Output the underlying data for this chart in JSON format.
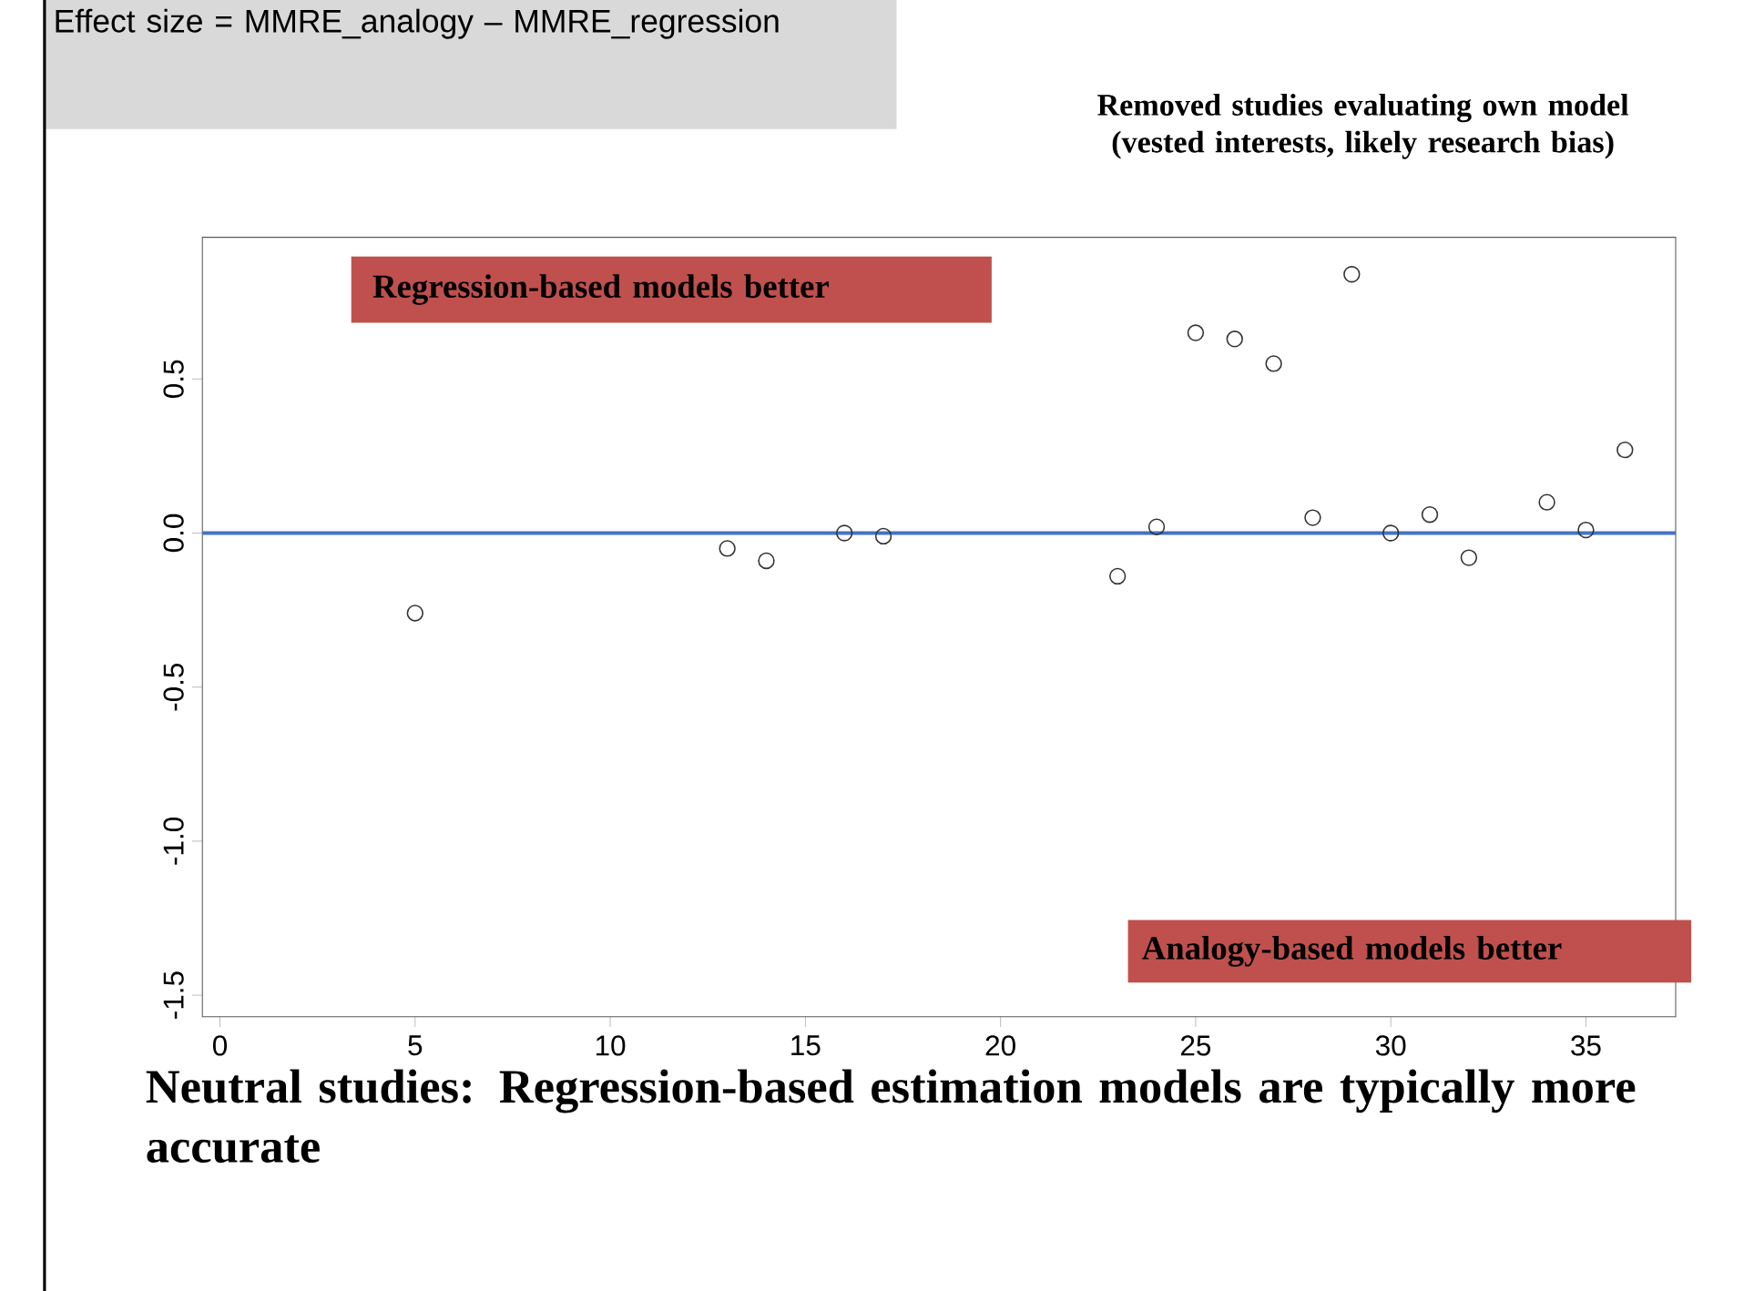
{
  "chart_data": {
    "type": "scatter",
    "x": [
      5,
      13,
      14,
      16,
      17,
      23,
      24,
      25,
      26,
      27,
      28,
      29,
      30,
      31,
      32,
      34,
      35,
      36
    ],
    "values": [
      -0.26,
      -0.05,
      -0.09,
      0.0,
      -0.01,
      -0.14,
      0.02,
      0.65,
      0.63,
      0.55,
      0.05,
      0.84,
      0.0,
      0.06,
      -0.08,
      0.1,
      0.01,
      0.27
    ],
    "color": "#333333",
    "marker": "circle",
    "xlim": [
      -0.45,
      37.3
    ],
    "ylim": [
      -1.57,
      0.96
    ],
    "xticks": [
      0,
      5,
      10,
      15,
      20,
      25,
      30,
      35
    ],
    "yticks": [
      -1.5,
      {
        "value": -1.0,
        "label": "-1.0"
      },
      -0.5,
      {
        "value": 0,
        "label": "0.0"
      },
      0.5
    ],
    "ref_lines": [
      {
        "axis": "y",
        "value": 0,
        "color": "#4472c4"
      }
    ],
    "annotations": [
      "Effect size = MMRE_analogy – MMRE_regression",
      "Removed studies evaluating own model (vested interests, likely research bias)",
      "Regression-based models better",
      "Analogy-based models better",
      "Neutral studies: Regression-based estimation models are typically more accurate"
    ]
  }
}
